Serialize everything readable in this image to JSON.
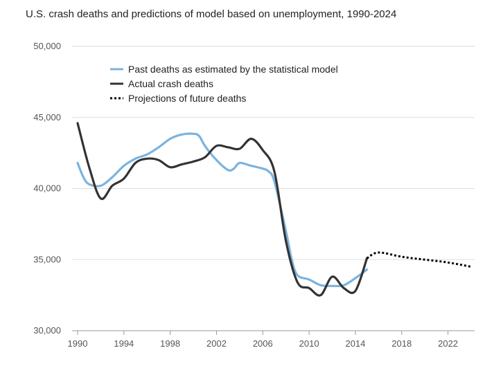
{
  "chart_data": {
    "type": "line",
    "title": "U.S. crash deaths and predictions of model based on unemployment, 1990-2024",
    "xlim": [
      1990,
      2024.3
    ],
    "ylim": [
      30000,
      50000
    ],
    "x_ticks": [
      1990,
      1994,
      1998,
      2002,
      2006,
      2010,
      2014,
      2018,
      2022
    ],
    "y_ticks": [
      {
        "value": 30000,
        "label": "30,000"
      },
      {
        "value": 35000,
        "label": "35,000"
      },
      {
        "value": 40000,
        "label": "40,000"
      },
      {
        "value": 45000,
        "label": "45,000"
      },
      {
        "value": 50000,
        "label": "50,000"
      }
    ],
    "grid": "horizontal",
    "legend_position": "top-left inside plot",
    "series": [
      {
        "name": "Past deaths as estimated by the statistical model",
        "color": "#7ab3e0",
        "style": "solid",
        "x": [
          1990,
          1990.5,
          1991,
          1992,
          1993,
          1994,
          1995,
          1996,
          1997,
          1998,
          1999,
          2000,
          2000.5,
          2001,
          2002,
          2003,
          2003.5,
          2004,
          2005,
          2006,
          2006.5,
          2007,
          2008,
          2008.5,
          2009,
          2010,
          2011,
          2012,
          2013,
          2014,
          2015
        ],
        "y": [
          41800,
          40800,
          40300,
          40200,
          40800,
          41600,
          42100,
          42400,
          42900,
          43500,
          43800,
          43850,
          43700,
          43000,
          42000,
          41300,
          41400,
          41800,
          41600,
          41400,
          41200,
          40500,
          37000,
          35000,
          33900,
          33600,
          33200,
          33150,
          33200,
          33700,
          34300
        ]
      },
      {
        "name": "Actual crash deaths",
        "color": "#333333",
        "style": "solid",
        "x": [
          1990,
          1991,
          1992,
          1993,
          1994,
          1995,
          1996,
          1997,
          1998,
          1999,
          2000,
          2001,
          2002,
          2003,
          2004,
          2005,
          2006,
          2007,
          2008,
          2009,
          2010,
          2011,
          2012,
          2013,
          2014,
          2015
        ],
        "y": [
          44600,
          41500,
          39300,
          40200,
          40700,
          41800,
          42100,
          42000,
          41500,
          41700,
          41900,
          42200,
          43000,
          42900,
          42800,
          43500,
          42700,
          41200,
          36300,
          33400,
          33000,
          32500,
          33800,
          33000,
          32800,
          35100
        ]
      },
      {
        "name": "Projections of future deaths",
        "color": "#000000",
        "style": "dotted",
        "x": [
          2015,
          2016,
          2018,
          2020,
          2022,
          2024
        ],
        "y": [
          35100,
          35500,
          35200,
          35000,
          34800,
          34500
        ]
      }
    ]
  }
}
